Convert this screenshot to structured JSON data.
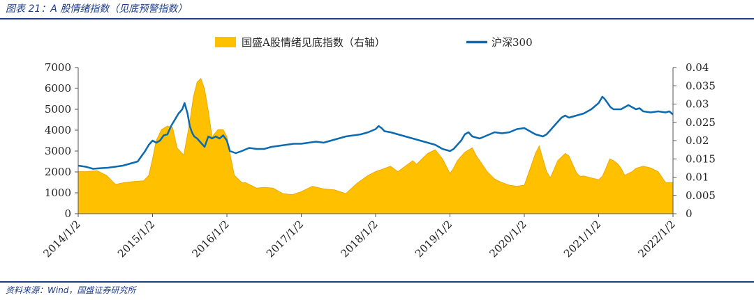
{
  "figure_title": "图表 21：A 股情绪指数（见底预警指数）",
  "source": "资料来源：Wind，国盛证券研究所",
  "colors": {
    "area": "#FFC000",
    "area_edge": "#F0A800",
    "line": "#0B6AB0",
    "rule": "#1f3c88"
  },
  "chart_data": {
    "type": "line",
    "title": "",
    "x_ticks": [
      "2014/1/2",
      "2015/1/2",
      "2016/1/2",
      "2017/1/2",
      "2018/1/2",
      "2019/1/2",
      "2020/1/2",
      "2021/1/2",
      "2022/1/2"
    ],
    "xlim": [
      2014.0,
      2022.0
    ],
    "left_ticks": [
      "0",
      "1000",
      "2000",
      "3000",
      "4000",
      "5000",
      "6000",
      "7000"
    ],
    "right_ticks": [
      "0",
      "0.005",
      "0.01",
      "0.015",
      "0.02",
      "0.025",
      "0.03",
      "0.035",
      "0.04"
    ],
    "ylim_left": [
      0,
      7000
    ],
    "ylim_right": [
      0,
      0.04
    ],
    "grid": false,
    "legend_position": "top",
    "series": [
      {
        "name": "国盛A股情绪见底指数（右轴）",
        "type": "area",
        "axis": "right",
        "x": [
          2014.0,
          2014.12,
          2014.25,
          2014.38,
          2014.5,
          2014.62,
          2014.75,
          2014.88,
          2014.95,
          2015.0,
          2015.05,
          2015.12,
          2015.2,
          2015.27,
          2015.33,
          2015.42,
          2015.5,
          2015.55,
          2015.6,
          2015.65,
          2015.7,
          2015.75,
          2015.8,
          2015.88,
          2015.95,
          2016.0,
          2016.05,
          2016.1,
          2016.15,
          2016.2,
          2016.25,
          2016.3,
          2016.35,
          2016.4,
          2016.5,
          2016.62,
          2016.75,
          2016.88,
          2017.0,
          2017.15,
          2017.3,
          2017.45,
          2017.6,
          2017.75,
          2017.9,
          2018.0,
          2018.1,
          2018.2,
          2018.3,
          2018.4,
          2018.5,
          2018.55,
          2018.6,
          2018.7,
          2018.8,
          2018.9,
          2019.0,
          2019.05,
          2019.1,
          2019.2,
          2019.3,
          2019.35,
          2019.4,
          2019.5,
          2019.6,
          2019.7,
          2019.8,
          2019.9,
          2020.0,
          2020.1,
          2020.15,
          2020.2,
          2020.25,
          2020.3,
          2020.35,
          2020.45,
          2020.5,
          2020.55,
          2020.6,
          2020.7,
          2020.75,
          2020.8,
          2020.9,
          2021.0,
          2021.05,
          2021.1,
          2021.15,
          2021.2,
          2021.25,
          2021.3,
          2021.35,
          2021.45,
          2021.5,
          2021.6,
          2021.7,
          2021.8,
          2021.9,
          2022.0
        ],
        "values": [
          0.0115,
          0.0115,
          0.0118,
          0.0105,
          0.008,
          0.0085,
          0.0088,
          0.009,
          0.0105,
          0.015,
          0.02,
          0.023,
          0.024,
          0.0235,
          0.018,
          0.016,
          0.025,
          0.032,
          0.036,
          0.037,
          0.034,
          0.028,
          0.021,
          0.023,
          0.023,
          0.021,
          0.0155,
          0.0105,
          0.0095,
          0.0085,
          0.0085,
          0.008,
          0.0075,
          0.007,
          0.0072,
          0.007,
          0.0055,
          0.0052,
          0.006,
          0.0075,
          0.0068,
          0.0065,
          0.0055,
          0.0083,
          0.0105,
          0.0115,
          0.0122,
          0.013,
          0.0115,
          0.013,
          0.0145,
          0.0135,
          0.0145,
          0.0165,
          0.0175,
          0.015,
          0.011,
          0.0125,
          0.0145,
          0.0168,
          0.018,
          0.016,
          0.0145,
          0.0115,
          0.0095,
          0.0085,
          0.0078,
          0.0075,
          0.0078,
          0.0135,
          0.0165,
          0.0185,
          0.015,
          0.0115,
          0.0098,
          0.0145,
          0.0155,
          0.0165,
          0.0158,
          0.0112,
          0.0102,
          0.0103,
          0.0098,
          0.0093,
          0.0102,
          0.0125,
          0.015,
          0.0145,
          0.0138,
          0.0125,
          0.0105,
          0.0115,
          0.0124,
          0.013,
          0.0125,
          0.0115,
          0.0085,
          0.0085
        ]
      },
      {
        "name": "沪深300",
        "type": "line",
        "axis": "left",
        "x": [
          2014.0,
          2014.1,
          2014.2,
          2014.3,
          2014.4,
          2014.5,
          2014.6,
          2014.7,
          2014.8,
          2014.9,
          2014.95,
          2015.0,
          2015.05,
          2015.1,
          2015.15,
          2015.2,
          2015.25,
          2015.3,
          2015.35,
          2015.4,
          2015.43,
          2015.47,
          2015.5,
          2015.53,
          2015.56,
          2015.6,
          2015.65,
          2015.7,
          2015.75,
          2015.8,
          2015.85,
          2015.9,
          2015.95,
          2016.0,
          2016.04,
          2016.08,
          2016.12,
          2016.2,
          2016.3,
          2016.4,
          2016.5,
          2016.6,
          2016.7,
          2016.8,
          2016.9,
          2017.0,
          2017.1,
          2017.2,
          2017.3,
          2017.4,
          2017.5,
          2017.6,
          2017.7,
          2017.8,
          2017.9,
          2018.0,
          2018.04,
          2018.08,
          2018.12,
          2018.2,
          2018.3,
          2018.4,
          2018.5,
          2018.6,
          2018.7,
          2018.8,
          2018.9,
          2019.0,
          2019.05,
          2019.1,
          2019.15,
          2019.2,
          2019.25,
          2019.3,
          2019.35,
          2019.4,
          2019.5,
          2019.6,
          2019.7,
          2019.8,
          2019.9,
          2020.0,
          2020.05,
          2020.1,
          2020.15,
          2020.2,
          2020.25,
          2020.3,
          2020.35,
          2020.4,
          2020.5,
          2020.55,
          2020.6,
          2020.7,
          2020.8,
          2020.9,
          2021.0,
          2021.05,
          2021.08,
          2021.12,
          2021.16,
          2021.2,
          2021.3,
          2021.4,
          2021.5,
          2021.55,
          2021.6,
          2021.7,
          2021.8,
          2021.9,
          2021.95,
          2022.0
        ],
        "values": [
          2300,
          2250,
          2150,
          2180,
          2200,
          2250,
          2300,
          2400,
          2500,
          3000,
          3300,
          3500,
          3400,
          3500,
          3750,
          3800,
          4200,
          4500,
          4800,
          5000,
          5300,
          4800,
          4200,
          3900,
          3700,
          3600,
          3400,
          3200,
          3700,
          3600,
          3700,
          3600,
          3750,
          3500,
          3000,
          2950,
          2900,
          3000,
          3150,
          3100,
          3100,
          3200,
          3250,
          3300,
          3350,
          3350,
          3400,
          3450,
          3400,
          3500,
          3600,
          3700,
          3750,
          3800,
          3900,
          4050,
          4200,
          4100,
          3950,
          3900,
          3800,
          3700,
          3600,
          3500,
          3400,
          3300,
          3100,
          3000,
          3100,
          3300,
          3500,
          3800,
          3900,
          3700,
          3650,
          3600,
          3750,
          3900,
          3850,
          3900,
          4050,
          4100,
          4000,
          3900,
          3800,
          3750,
          3700,
          3800,
          4000,
          4200,
          4600,
          4700,
          4600,
          4700,
          4800,
          5000,
          5300,
          5600,
          5500,
          5300,
          5100,
          5000,
          5000,
          5200,
          5000,
          5050,
          4900,
          4850,
          4900,
          4850,
          4900,
          4750
        ]
      }
    ]
  }
}
